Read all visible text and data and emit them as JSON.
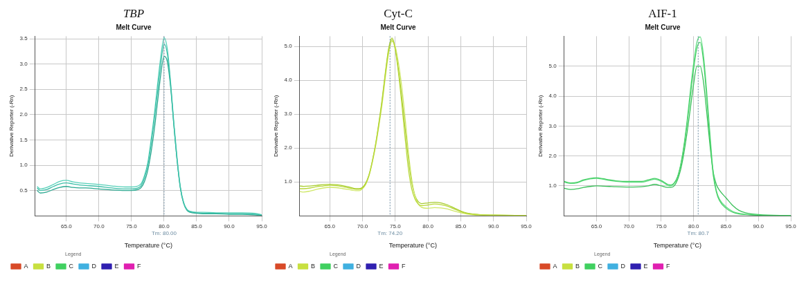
{
  "chart_data": [
    {
      "type": "line",
      "title": "TBP",
      "subtitle": "Melt Curve",
      "xlabel": "Temperature (°C)",
      "ylabel": "Derivative Reporter (-Rn)",
      "legend_title": "Legend",
      "legend": "bottom",
      "grid": true,
      "marker": "none",
      "line_style": "solid",
      "xlim": [
        60.2,
        95
      ],
      "xticks": [
        {
          "value": 65,
          "label": "65.0"
        },
        {
          "value": 70,
          "label": "70.0"
        },
        {
          "value": 75,
          "label": "75.0"
        },
        {
          "value": 80,
          "label": "80.0"
        },
        {
          "value": 85,
          "label": "85.0"
        },
        {
          "value": 90,
          "label": "90.0"
        },
        {
          "value": 95,
          "label": "95.0"
        }
      ],
      "ylim": [
        0,
        3.55
      ],
      "yticks": [
        {
          "value": 0.5,
          "label": "0.5"
        },
        {
          "value": 1,
          "label": "1.0"
        },
        {
          "value": 1.5,
          "label": "1.5"
        },
        {
          "value": 2,
          "label": "2.0"
        },
        {
          "value": 2.5,
          "label": "2.5"
        },
        {
          "value": 3,
          "label": "3.0"
        },
        {
          "value": 3.5,
          "label": "3.5"
        }
      ],
      "ref_lines": [
        {
          "axis": "x",
          "value": 80.0,
          "label": "Tm: 80.00",
          "color": "#6a8aa0",
          "line_style": "dotted"
        }
      ],
      "x": [
        60.5,
        61,
        62,
        63,
        64,
        65,
        66,
        67,
        68,
        70,
        72,
        74,
        75,
        76,
        76.5,
        77,
        77.5,
        78,
        78.5,
        79,
        79.5,
        80,
        80.5,
        81,
        81.5,
        82,
        82.5,
        83,
        83.5,
        84,
        85,
        86,
        88,
        90,
        92,
        94,
        95
      ],
      "series": [
        {
          "color": "#3cbfa8",
          "values": [
            0.55,
            0.5,
            0.52,
            0.58,
            0.63,
            0.65,
            0.63,
            0.61,
            0.6,
            0.58,
            0.55,
            0.53,
            0.53,
            0.55,
            0.6,
            0.75,
            1.0,
            1.4,
            1.9,
            2.45,
            3.0,
            3.4,
            3.2,
            2.6,
            1.8,
            1.1,
            0.55,
            0.25,
            0.12,
            0.08,
            0.06,
            0.05,
            0.05,
            0.04,
            0.04,
            0.03,
            0.01
          ]
        },
        {
          "color": "#55d0b8",
          "values": [
            0.58,
            0.53,
            0.56,
            0.62,
            0.68,
            0.7,
            0.67,
            0.65,
            0.64,
            0.62,
            0.59,
            0.57,
            0.57,
            0.59,
            0.64,
            0.8,
            1.05,
            1.5,
            2.0,
            2.6,
            3.15,
            3.52,
            3.3,
            2.65,
            1.85,
            1.15,
            0.58,
            0.27,
            0.13,
            0.09,
            0.07,
            0.07,
            0.06,
            0.06,
            0.06,
            0.05,
            0.02
          ]
        },
        {
          "color": "#2aa890",
          "values": [
            0.5,
            0.45,
            0.47,
            0.52,
            0.56,
            0.58,
            0.56,
            0.55,
            0.55,
            0.53,
            0.51,
            0.5,
            0.5,
            0.52,
            0.56,
            0.68,
            0.9,
            1.25,
            1.7,
            2.25,
            2.8,
            3.15,
            3.05,
            2.55,
            1.8,
            1.1,
            0.55,
            0.25,
            0.11,
            0.07,
            0.05,
            0.04,
            0.04,
            0.03,
            0.03,
            0.02,
            0.01
          ]
        },
        {
          "name": "A",
          "color": "#d84a28",
          "values": [
            null,
            null,
            null,
            null,
            null,
            null,
            null,
            null,
            null,
            null,
            null,
            null,
            null,
            null,
            null,
            null,
            null,
            null,
            null,
            null,
            null,
            null,
            null,
            null,
            null,
            null,
            null,
            null,
            null,
            null,
            null,
            null,
            null,
            null,
            null,
            null,
            null
          ]
        },
        {
          "name": "B",
          "color": "#c8e040",
          "values": [
            null,
            null,
            null,
            null,
            null,
            null,
            null,
            null,
            null,
            null,
            null,
            null,
            null,
            null,
            null,
            null,
            null,
            null,
            null,
            null,
            null,
            null,
            null,
            null,
            null,
            null,
            null,
            null,
            null,
            null,
            null,
            null,
            null,
            null,
            null,
            null,
            null
          ]
        },
        {
          "name": "C",
          "color": "#40d060",
          "values": [
            null,
            null,
            null,
            null,
            null,
            null,
            null,
            null,
            null,
            null,
            null,
            null,
            null,
            null,
            null,
            null,
            null,
            null,
            null,
            null,
            null,
            null,
            null,
            null,
            null,
            null,
            null,
            null,
            null,
            null,
            null,
            null,
            null,
            null,
            null,
            null,
            null
          ]
        },
        {
          "name": "D",
          "color": "#40b0e0",
          "values": [
            null,
            null,
            null,
            null,
            null,
            null,
            null,
            null,
            null,
            null,
            null,
            null,
            null,
            null,
            null,
            null,
            null,
            null,
            null,
            null,
            null,
            null,
            null,
            null,
            null,
            null,
            null,
            null,
            null,
            null,
            null,
            null,
            null,
            null,
            null,
            null,
            null
          ]
        },
        {
          "name": "E",
          "color": "#3020b0",
          "values": [
            null,
            null,
            null,
            null,
            null,
            null,
            null,
            null,
            null,
            null,
            null,
            null,
            null,
            null,
            null,
            null,
            null,
            null,
            null,
            null,
            null,
            null,
            null,
            null,
            null,
            null,
            null,
            null,
            null,
            null,
            null,
            null,
            null,
            null,
            null,
            null,
            null
          ]
        },
        {
          "name": "F",
          "color": "#e020b0",
          "values": [
            null,
            null,
            null,
            null,
            null,
            null,
            null,
            null,
            null,
            null,
            null,
            null,
            null,
            null,
            null,
            null,
            null,
            null,
            null,
            null,
            null,
            null,
            null,
            null,
            null,
            null,
            null,
            null,
            null,
            null,
            null,
            null,
            null,
            null,
            null,
            null,
            null
          ]
        }
      ]
    },
    {
      "type": "line",
      "title": "Cyt-C",
      "subtitle": "Melt Curve",
      "xlabel": "Temperature (°C)",
      "ylabel": "Derivative Reporter (-Rn)",
      "legend_title": "Legend",
      "legend": "bottom",
      "grid": true,
      "marker": "none",
      "line_style": "solid",
      "xlim": [
        60.4,
        95
      ],
      "xticks": [
        {
          "value": 65,
          "label": "65.0"
        },
        {
          "value": 70,
          "label": "70.0"
        },
        {
          "value": 75,
          "label": "75.0"
        },
        {
          "value": 80,
          "label": "80.0"
        },
        {
          "value": 85,
          "label": "85.0"
        },
        {
          "value": 90,
          "label": "90.0"
        },
        {
          "value": 95,
          "label": "95.0"
        }
      ],
      "ylim": [
        0,
        5.3
      ],
      "yticks": [
        {
          "value": 1,
          "label": "1.0"
        },
        {
          "value": 2,
          "label": "2.0"
        },
        {
          "value": 3,
          "label": "3.0"
        },
        {
          "value": 4,
          "label": "4.0"
        },
        {
          "value": 5,
          "label": "5.0"
        }
      ],
      "ref_lines": [
        {
          "axis": "x",
          "value": 74.2,
          "label": "Tm: 74.20",
          "color": "#6a8aa0",
          "line_style": "dotted"
        }
      ],
      "x": [
        60.4,
        61,
        62,
        63,
        64,
        65,
        66,
        67,
        68,
        69,
        69.5,
        70,
        70.5,
        71,
        71.5,
        72,
        72.5,
        73,
        73.5,
        74,
        74.5,
        75,
        75.5,
        76,
        76.5,
        77,
        77.5,
        78,
        78.5,
        79,
        80,
        81,
        82,
        83,
        84,
        85,
        86,
        87,
        88,
        90,
        95
      ],
      "series": [
        {
          "color": "#b8d838",
          "values": [
            0.8,
            0.8,
            0.82,
            0.86,
            0.88,
            0.9,
            0.89,
            0.86,
            0.82,
            0.78,
            0.78,
            0.82,
            0.95,
            1.2,
            1.6,
            2.1,
            2.7,
            3.4,
            4.2,
            4.9,
            5.2,
            4.9,
            4.2,
            3.3,
            2.3,
            1.4,
            0.8,
            0.5,
            0.35,
            0.3,
            0.32,
            0.35,
            0.33,
            0.28,
            0.2,
            0.12,
            0.07,
            0.04,
            0.03,
            0.02,
            0.01
          ]
        },
        {
          "color": "#d0e868",
          "values": [
            0.72,
            0.7,
            0.73,
            0.78,
            0.82,
            0.84,
            0.83,
            0.8,
            0.77,
            0.74,
            0.74,
            0.8,
            0.93,
            1.18,
            1.58,
            2.05,
            2.65,
            3.3,
            4.1,
            4.8,
            5.15,
            5.0,
            4.5,
            3.8,
            2.9,
            1.9,
            1.1,
            0.6,
            0.35,
            0.25,
            0.22,
            0.24,
            0.23,
            0.2,
            0.14,
            0.09,
            0.05,
            0.03,
            0.02,
            0.01,
            0.01
          ]
        },
        {
          "color": "#a8cc30",
          "values": [
            0.88,
            0.87,
            0.88,
            0.9,
            0.92,
            0.93,
            0.92,
            0.89,
            0.85,
            0.8,
            0.8,
            0.84,
            0.97,
            1.22,
            1.62,
            2.12,
            2.75,
            3.45,
            4.25,
            4.95,
            5.25,
            4.95,
            4.3,
            3.5,
            2.6,
            1.7,
            1.0,
            0.6,
            0.42,
            0.36,
            0.38,
            0.4,
            0.38,
            0.32,
            0.23,
            0.14,
            0.08,
            0.05,
            0.03,
            0.02,
            0.01
          ]
        },
        {
          "name": "A",
          "color": "#d84a28",
          "values": [
            null,
            null,
            null,
            null,
            null,
            null,
            null,
            null,
            null,
            null,
            null,
            null,
            null,
            null,
            null,
            null,
            null,
            null,
            null,
            null,
            null,
            null,
            null,
            null,
            null,
            null,
            null,
            null,
            null,
            null,
            null,
            null,
            null,
            null,
            null,
            null,
            null,
            null,
            null,
            null,
            null
          ]
        },
        {
          "name": "B",
          "color": "#c8e040",
          "values": [
            null,
            null,
            null,
            null,
            null,
            null,
            null,
            null,
            null,
            null,
            null,
            null,
            null,
            null,
            null,
            null,
            null,
            null,
            null,
            null,
            null,
            null,
            null,
            null,
            null,
            null,
            null,
            null,
            null,
            null,
            null,
            null,
            null,
            null,
            null,
            null,
            null,
            null,
            null,
            null,
            null
          ]
        },
        {
          "name": "C",
          "color": "#40d060",
          "values": [
            null,
            null,
            null,
            null,
            null,
            null,
            null,
            null,
            null,
            null,
            null,
            null,
            null,
            null,
            null,
            null,
            null,
            null,
            null,
            null,
            null,
            null,
            null,
            null,
            null,
            null,
            null,
            null,
            null,
            null,
            null,
            null,
            null,
            null,
            null,
            null,
            null,
            null,
            null,
            null,
            null
          ]
        },
        {
          "name": "D",
          "color": "#40b0e0",
          "values": [
            null,
            null,
            null,
            null,
            null,
            null,
            null,
            null,
            null,
            null,
            null,
            null,
            null,
            null,
            null,
            null,
            null,
            null,
            null,
            null,
            null,
            null,
            null,
            null,
            null,
            null,
            null,
            null,
            null,
            null,
            null,
            null,
            null,
            null,
            null,
            null,
            null,
            null,
            null,
            null,
            null
          ]
        },
        {
          "name": "E",
          "color": "#3020b0",
          "values": [
            null,
            null,
            null,
            null,
            null,
            null,
            null,
            null,
            null,
            null,
            null,
            null,
            null,
            null,
            null,
            null,
            null,
            null,
            null,
            null,
            null,
            null,
            null,
            null,
            null,
            null,
            null,
            null,
            null,
            null,
            null,
            null,
            null,
            null,
            null,
            null,
            null,
            null,
            null,
            null,
            null
          ]
        },
        {
          "name": "F",
          "color": "#e020b0",
          "values": [
            null,
            null,
            null,
            null,
            null,
            null,
            null,
            null,
            null,
            null,
            null,
            null,
            null,
            null,
            null,
            null,
            null,
            null,
            null,
            null,
            null,
            null,
            null,
            null,
            null,
            null,
            null,
            null,
            null,
            null,
            null,
            null,
            null,
            null,
            null,
            null,
            null,
            null,
            null,
            null,
            null
          ]
        }
      ]
    },
    {
      "type": "line",
      "title": "AIF-1",
      "subtitle": "Melt Curve",
      "xlabel": "Temperature (°C)",
      "ylabel": "Derivative Reporter (-Rn)",
      "legend_title": "Legend",
      "legend": "bottom",
      "grid": true,
      "marker": "none",
      "line_style": "solid",
      "xlim": [
        60,
        95
      ],
      "xticks": [
        {
          "value": 65,
          "label": "65.0"
        },
        {
          "value": 70,
          "label": "70.0"
        },
        {
          "value": 75,
          "label": "75.0"
        },
        {
          "value": 80,
          "label": "80.0"
        },
        {
          "value": 85,
          "label": "85.0"
        },
        {
          "value": 90,
          "label": "90.0"
        },
        {
          "value": 95,
          "label": "95.0"
        }
      ],
      "ylim": [
        0,
        6.0
      ],
      "yticks": [
        {
          "value": 1,
          "label": "1.0"
        },
        {
          "value": 2,
          "label": "2.0"
        },
        {
          "value": 3,
          "label": "3.0"
        },
        {
          "value": 4,
          "label": "4.0"
        },
        {
          "value": 5,
          "label": "5.0"
        }
      ],
      "ref_lines": [
        {
          "axis": "x",
          "value": 80.7,
          "label": "Tm: 80.7",
          "color": "#6a8aa0",
          "line_style": "dotted"
        }
      ],
      "x": [
        60,
        61,
        62,
        63,
        64,
        65,
        66,
        67,
        68,
        70,
        72,
        73,
        74,
        75,
        76,
        76.5,
        77,
        77.5,
        78,
        78.5,
        79,
        79.5,
        80,
        80.5,
        81,
        81.5,
        82,
        82.5,
        83,
        83.5,
        84,
        85,
        86,
        87,
        88,
        90,
        95
      ],
      "series": [
        {
          "color": "#48d068",
          "values": [
            1.15,
            1.1,
            1.12,
            1.2,
            1.25,
            1.27,
            1.24,
            1.2,
            1.17,
            1.15,
            1.15,
            1.2,
            1.25,
            1.18,
            1.05,
            1.03,
            1.1,
            1.3,
            1.7,
            2.3,
            3.1,
            4.0,
            4.9,
            5.6,
            5.8,
            5.2,
            4.0,
            2.6,
            1.4,
            0.8,
            0.5,
            0.25,
            0.12,
            0.06,
            0.04,
            0.02,
            0.01
          ]
        },
        {
          "color": "#60dc80",
          "values": [
            1.12,
            1.08,
            1.1,
            1.18,
            1.23,
            1.25,
            1.22,
            1.18,
            1.15,
            1.12,
            1.12,
            1.17,
            1.22,
            1.15,
            1.02,
            1.0,
            1.08,
            1.28,
            1.7,
            2.35,
            3.2,
            4.2,
            5.1,
            5.8,
            5.98,
            5.4,
            4.2,
            2.8,
            1.5,
            0.85,
            0.55,
            0.3,
            0.15,
            0.08,
            0.05,
            0.02,
            0.01
          ]
        },
        {
          "color": "#38c058",
          "values": [
            0.92,
            0.88,
            0.9,
            0.95,
            0.98,
            1.0,
            0.99,
            0.98,
            0.97,
            0.96,
            0.97,
            1.0,
            1.05,
            1.0,
            0.95,
            0.95,
            1.0,
            1.2,
            1.55,
            2.1,
            2.8,
            3.6,
            4.4,
            5.0,
            5.0,
            4.5,
            3.5,
            2.4,
            1.5,
            1.05,
            0.85,
            0.6,
            0.35,
            0.18,
            0.1,
            0.04,
            0.01
          ]
        },
        {
          "name": "A",
          "color": "#d84a28",
          "values": [
            null,
            null,
            null,
            null,
            null,
            null,
            null,
            null,
            null,
            null,
            null,
            null,
            null,
            null,
            null,
            null,
            null,
            null,
            null,
            null,
            null,
            null,
            null,
            null,
            null,
            null,
            null,
            null,
            null,
            null,
            null,
            null,
            null,
            null,
            null,
            null,
            null
          ]
        },
        {
          "name": "B",
          "color": "#c8e040",
          "values": [
            null,
            null,
            null,
            null,
            null,
            null,
            null,
            null,
            null,
            null,
            null,
            null,
            null,
            null,
            null,
            null,
            null,
            null,
            null,
            null,
            null,
            null,
            null,
            null,
            null,
            null,
            null,
            null,
            null,
            null,
            null,
            null,
            null,
            null,
            null,
            null,
            null
          ]
        },
        {
          "name": "C",
          "color": "#40d060",
          "values": [
            null,
            null,
            null,
            null,
            null,
            null,
            null,
            null,
            null,
            null,
            null,
            null,
            null,
            null,
            null,
            null,
            null,
            null,
            null,
            null,
            null,
            null,
            null,
            null,
            null,
            null,
            null,
            null,
            null,
            null,
            null,
            null,
            null,
            null,
            null,
            null,
            null
          ]
        },
        {
          "name": "D",
          "color": "#40b0e0",
          "values": [
            null,
            null,
            null,
            null,
            null,
            null,
            null,
            null,
            null,
            null,
            null,
            null,
            null,
            null,
            null,
            null,
            null,
            null,
            null,
            null,
            null,
            null,
            null,
            null,
            null,
            null,
            null,
            null,
            null,
            null,
            null,
            null,
            null,
            null,
            null,
            null,
            null
          ]
        },
        {
          "name": "E",
          "color": "#3020b0",
          "values": [
            null,
            null,
            null,
            null,
            null,
            null,
            null,
            null,
            null,
            null,
            null,
            null,
            null,
            null,
            null,
            null,
            null,
            null,
            null,
            null,
            null,
            null,
            null,
            null,
            null,
            null,
            null,
            null,
            null,
            null,
            null,
            null,
            null,
            null,
            null,
            null,
            null
          ]
        },
        {
          "name": "F",
          "color": "#e020b0",
          "values": [
            null,
            null,
            null,
            null,
            null,
            null,
            null,
            null,
            null,
            null,
            null,
            null,
            null,
            null,
            null,
            null,
            null,
            null,
            null,
            null,
            null,
            null,
            null,
            null,
            null,
            null,
            null,
            null,
            null,
            null,
            null,
            null,
            null,
            null,
            null,
            null,
            null
          ]
        }
      ]
    }
  ]
}
